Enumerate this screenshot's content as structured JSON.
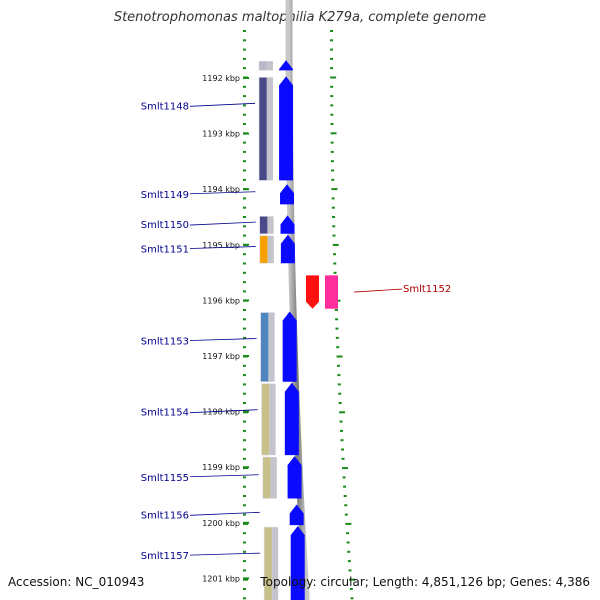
{
  "title": "Stenotrophomonas maltophilia K279a, complete genome",
  "accession": "Accession: NC_010943",
  "topology": "Topology: circular; Length: 4,851,126 bp; Genes: 4,386",
  "colors": {
    "forward_arrow": "#0a0aff",
    "reverse_arrow_red": "#ff1010",
    "reverse_arrow_pink": "#ff2c9c",
    "backbone": "#8a8a8a",
    "tick": "#1a8a1a",
    "label_forward": "#00008b",
    "label_reverse": "#b00000"
  },
  "ticks": [
    "1192 kbp",
    "1193 kbp",
    "1194 kbp",
    "1195 kbp",
    "1196 kbp",
    "1197 kbp",
    "1198 kbp",
    "1199 kbp",
    "1200 kbp",
    "1201 kbp"
  ],
  "genes": [
    {
      "label": "",
      "strand": "+",
      "start": 1191.68,
      "end": 1191.88,
      "color": "#b8b8c8"
    },
    {
      "label": "Smlt1148",
      "strand": "+",
      "start": 1191.97,
      "end": 1193.86,
      "color": "#4a4a8a"
    },
    {
      "label": "Smlt1149",
      "strand": "+",
      "start": 1193.91,
      "end": 1194.29,
      "color": "#ffffff"
    },
    {
      "label": "Smlt1150",
      "strand": "+",
      "start": 1194.47,
      "end": 1194.82,
      "color": "#4a4a8a"
    },
    {
      "label": "Smlt1151",
      "strand": "+",
      "start": 1194.82,
      "end": 1195.35,
      "color": "#f5a000"
    },
    {
      "label": "Smlt1152",
      "strand": "-",
      "start": 1195.55,
      "end": 1196.15,
      "color": "#ff1010"
    },
    {
      "label": "Smlt1153",
      "strand": "+",
      "start": 1196.2,
      "end": 1197.48,
      "color": "#4f86c0"
    },
    {
      "label": "Smlt1154",
      "strand": "+",
      "start": 1197.48,
      "end": 1198.8,
      "color": "#c8c08a"
    },
    {
      "label": "Smlt1155",
      "strand": "+",
      "start": 1198.8,
      "end": 1199.58,
      "color": "#c8c08a"
    },
    {
      "label": "Smlt1156",
      "strand": "+",
      "start": 1199.67,
      "end": 1200.06,
      "color": "#ffffff"
    },
    {
      "label": "Smlt1157",
      "strand": "+",
      "start": 1200.06,
      "end": 1201.52,
      "color": "#c8c08a"
    }
  ]
}
